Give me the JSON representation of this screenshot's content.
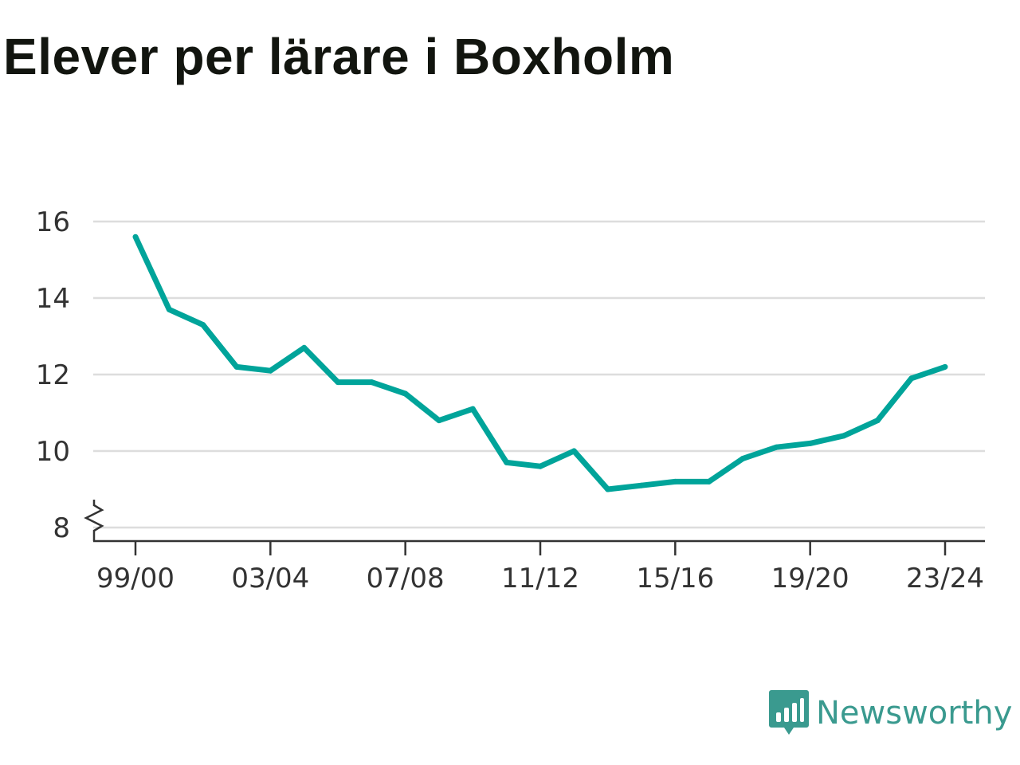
{
  "chart_data": {
    "type": "line",
    "title": "Elever per lärare i Boxholm",
    "xlabel": "",
    "ylabel": "",
    "x": [
      "99/00",
      "00/01",
      "01/02",
      "02/03",
      "03/04",
      "04/05",
      "05/06",
      "06/07",
      "07/08",
      "08/09",
      "09/10",
      "10/11",
      "11/12",
      "12/13",
      "13/14",
      "14/15",
      "15/16",
      "16/17",
      "17/18",
      "18/19",
      "19/20",
      "20/21",
      "21/22",
      "22/23",
      "23/24"
    ],
    "x_tick_labels": [
      "99/00",
      "03/04",
      "07/08",
      "11/12",
      "15/16",
      "19/20",
      "23/24"
    ],
    "series": [
      {
        "values": [
          15.6,
          13.7,
          13.3,
          12.2,
          12.1,
          12.7,
          11.8,
          11.8,
          11.5,
          10.8,
          11.1,
          9.7,
          9.6,
          10.0,
          9.0,
          9.1,
          9.2,
          9.2,
          9.8,
          10.1,
          10.2,
          10.4,
          10.8,
          11.9,
          12.2
        ],
        "color": "#00a49a"
      }
    ],
    "y_ticks": [
      8,
      10,
      12,
      14,
      16
    ],
    "y_tick_labels": [
      "8",
      "10",
      "12",
      "14",
      "16"
    ],
    "ylim": [
      7.65,
      16
    ],
    "y_axis_break": true,
    "grid": true,
    "legend": "none"
  },
  "colors": {
    "line": "#00a49a",
    "grid": "#dddddd",
    "axis": "#333333",
    "brand": "#3a9a8f"
  },
  "brand": {
    "name": "Newsworthy",
    "icon": "newsworthy-logo-icon"
  }
}
